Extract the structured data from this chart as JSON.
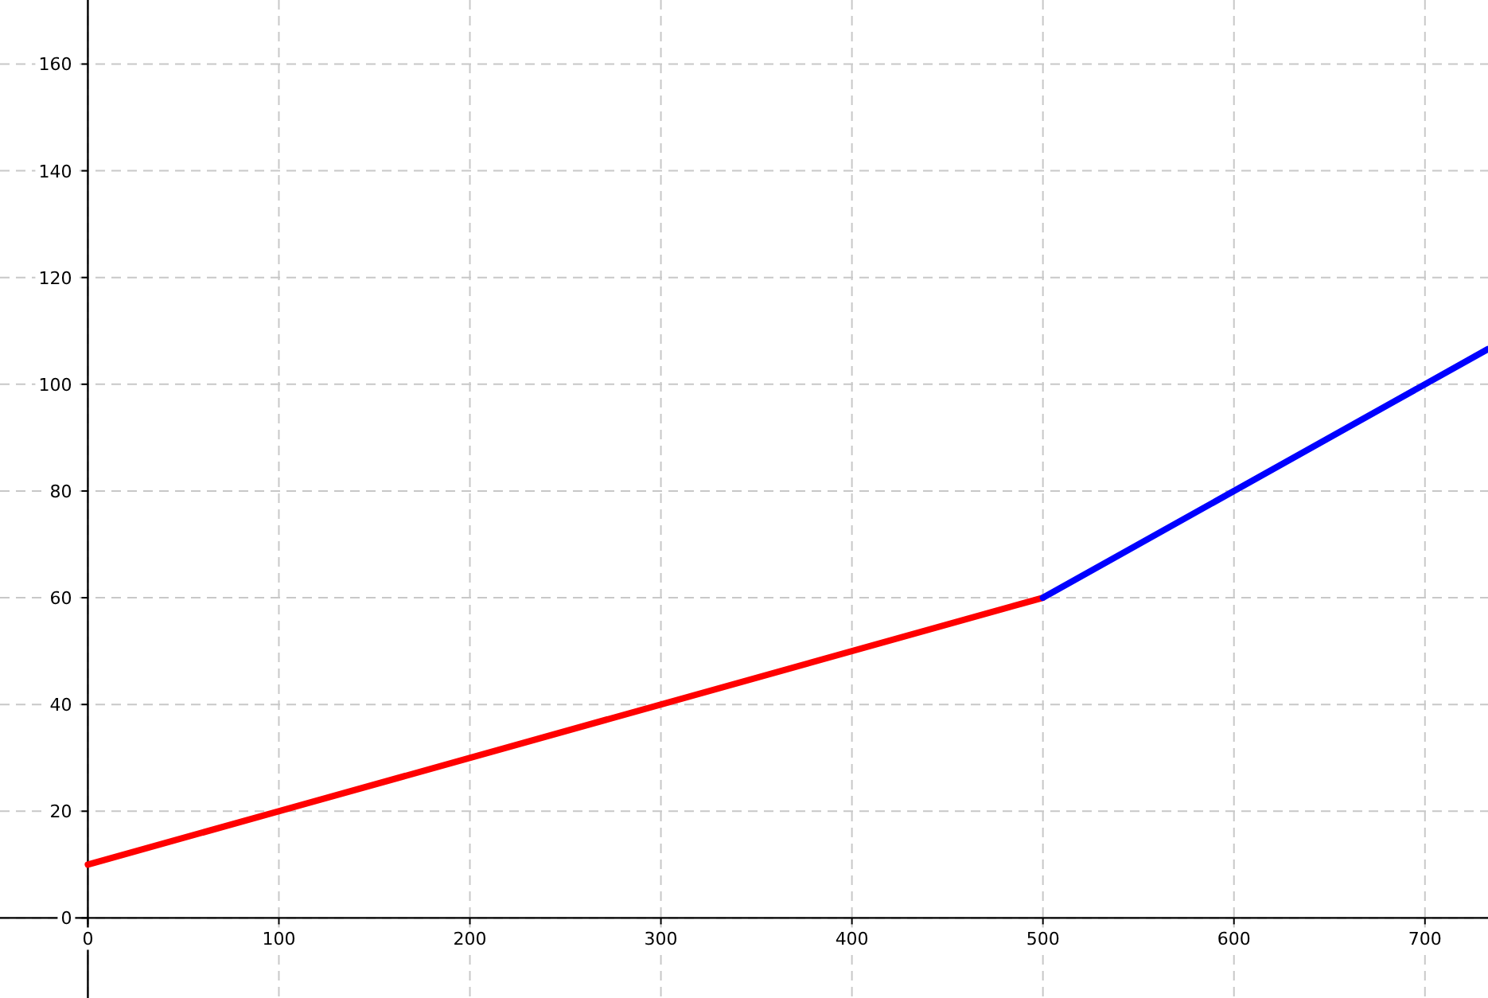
{
  "chart_data": {
    "type": "line",
    "xlim": [
      -46,
      733
    ],
    "ylim": [
      -15,
      172
    ],
    "xticks": [
      0,
      100,
      200,
      300,
      400,
      500,
      600,
      700
    ],
    "yticks": [
      0,
      20,
      40,
      60,
      80,
      100,
      120,
      140,
      160
    ],
    "grid": true,
    "marker": "none",
    "line_style": "solid",
    "series": [
      {
        "color": "#ff0000",
        "x": [
          0,
          500
        ],
        "values": [
          10,
          60
        ]
      },
      {
        "color": "#0000ff",
        "x": [
          500,
          733
        ],
        "values": [
          60,
          106.6
        ]
      }
    ]
  }
}
